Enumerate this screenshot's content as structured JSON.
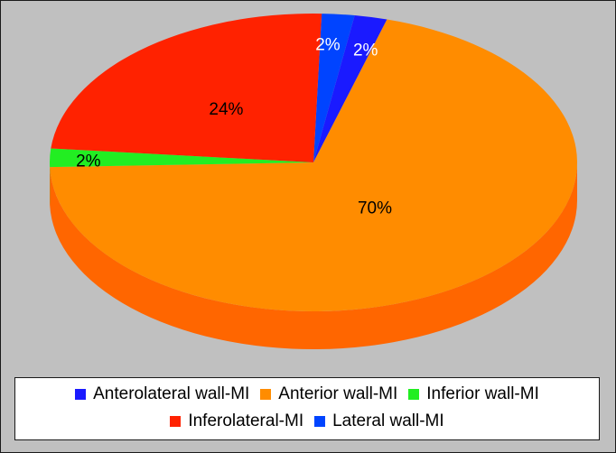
{
  "chart_data": {
    "type": "pie",
    "style": "3d",
    "title": "",
    "slices": [
      {
        "name": "Anterolateral wall-MI",
        "value": 2,
        "label": "2%",
        "color": "#1a1aff"
      },
      {
        "name": "Anterior wall-MI",
        "value": 70,
        "label": "70%",
        "color": "#ff8c00"
      },
      {
        "name": "Inferior wall-MI",
        "value": 2,
        "label": "2%",
        "color": "#22ee22"
      },
      {
        "name": "Inferolateral-MI",
        "value": 24,
        "label": "24%",
        "color": "#ff2200"
      },
      {
        "name": "Lateral wall-MI",
        "value": 2,
        "label": "2%",
        "color": "#0044ff"
      }
    ],
    "legend_placement": "bottom",
    "colors": {
      "background": "#c0c0c0",
      "legend_background": "#ffffff"
    }
  }
}
